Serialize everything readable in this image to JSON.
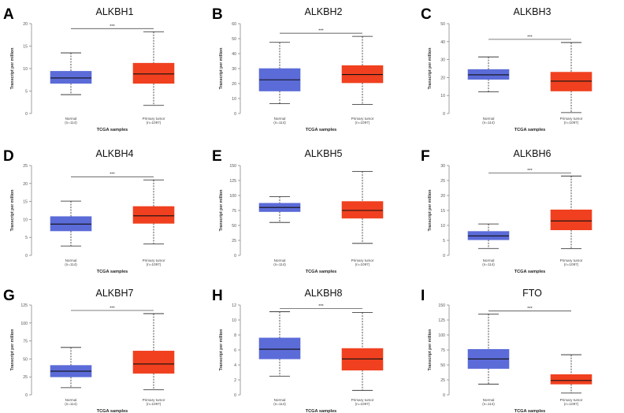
{
  "colors": {
    "normal": "#5b6bd8",
    "tumor": "#f0401f",
    "median": "#111111",
    "axis": "#888888",
    "tick": "#555555"
  },
  "chart_data": [
    {
      "type": "box",
      "letter": "A",
      "title": "ALKBH1",
      "ylabel": "Transcript per million",
      "xlabel": "TCGA samples",
      "yticks": [
        0,
        5,
        10,
        15,
        20
      ],
      "ylim": [
        0,
        20
      ],
      "significance": "***",
      "groups": [
        {
          "label": "Normal",
          "n": "(n=114)",
          "color": "normal",
          "min": 4.2,
          "q1": 6.7,
          "median": 7.9,
          "q3": 9.4,
          "max": 13.5
        },
        {
          "label": "Primary tumor",
          "n": "(n=1097)",
          "color": "tumor",
          "min": 1.8,
          "q1": 6.7,
          "median": 8.8,
          "q3": 11.2,
          "max": 18.2
        }
      ]
    },
    {
      "type": "box",
      "letter": "B",
      "title": "ALKBH2",
      "ylabel": "Transcript per million",
      "xlabel": "TCGA samples",
      "yticks": [
        0,
        10,
        20,
        30,
        40,
        50,
        60
      ],
      "ylim": [
        0,
        60
      ],
      "significance": "***",
      "groups": [
        {
          "label": "Normal",
          "n": "(n=114)",
          "color": "normal",
          "min": 6.5,
          "q1": 15,
          "median": 22.5,
          "q3": 30,
          "max": 47.5
        },
        {
          "label": "Primary tumor",
          "n": "(n=1097)",
          "color": "tumor",
          "min": 6,
          "q1": 20.5,
          "median": 26,
          "q3": 32,
          "max": 51.5
        }
      ]
    },
    {
      "type": "box",
      "letter": "C",
      "title": "ALKBH3",
      "ylabel": "Transcript per million",
      "xlabel": "TCGA samples",
      "yticks": [
        0,
        10,
        20,
        30,
        40,
        50
      ],
      "ylim": [
        0,
        50
      ],
      "significance": "***",
      "groups": [
        {
          "label": "Normal",
          "n": "(n=114)",
          "color": "normal",
          "min": 12,
          "q1": 19,
          "median": 21.5,
          "q3": 24.5,
          "max": 31.5
        },
        {
          "label": "Primary tumor",
          "n": "(n=1097)",
          "color": "tumor",
          "min": 0.5,
          "q1": 12.5,
          "median": 18,
          "q3": 23,
          "max": 39.5
        }
      ]
    },
    {
      "type": "box",
      "letter": "D",
      "title": "ALKBH4",
      "ylabel": "Transcript per million",
      "xlabel": "TCGA samples",
      "yticks": [
        0,
        5,
        10,
        15,
        20,
        25
      ],
      "ylim": [
        0,
        25
      ],
      "significance": "***",
      "groups": [
        {
          "label": "Normal",
          "n": "(n=114)",
          "color": "normal",
          "min": 2.6,
          "q1": 6.8,
          "median": 8.7,
          "q3": 10.8,
          "max": 15.1
        },
        {
          "label": "Primary tumor",
          "n": "(n=1097)",
          "color": "tumor",
          "min": 3.2,
          "q1": 8.9,
          "median": 11,
          "q3": 13.6,
          "max": 21
        }
      ]
    },
    {
      "type": "box",
      "letter": "E",
      "title": "ALKBH5",
      "ylabel": "Transcript per million",
      "xlabel": "TCGA samples",
      "yticks": [
        0,
        25,
        50,
        75,
        100,
        125,
        150
      ],
      "ylim": [
        0,
        150
      ],
      "significance": "",
      "groups": [
        {
          "label": "Normal",
          "n": "(n=114)",
          "color": "normal",
          "min": 55,
          "q1": 73,
          "median": 80,
          "q3": 87,
          "max": 98
        },
        {
          "label": "Primary tumor",
          "n": "(n=1097)",
          "color": "tumor",
          "min": 20,
          "q1": 62,
          "median": 75,
          "q3": 90,
          "max": 140
        }
      ]
    },
    {
      "type": "box",
      "letter": "F",
      "title": "ALKBH6",
      "ylabel": "Transcript per million",
      "xlabel": "TCGA samples",
      "yticks": [
        0,
        5,
        10,
        15,
        20,
        25,
        30
      ],
      "ylim": [
        0,
        30
      ],
      "significance": "***",
      "groups": [
        {
          "label": "Normal",
          "n": "(n=114)",
          "color": "normal",
          "min": 2.3,
          "q1": 5.2,
          "median": 6.5,
          "q3": 8,
          "max": 10.5
        },
        {
          "label": "Primary tumor",
          "n": "(n=1097)",
          "color": "tumor",
          "min": 2.2,
          "q1": 8.5,
          "median": 11.5,
          "q3": 15.2,
          "max": 26.5
        }
      ]
    },
    {
      "type": "box",
      "letter": "G",
      "title": "ALKBH7",
      "ylabel": "Transcript per million",
      "xlabel": "TCGA samples",
      "yticks": [
        0,
        25,
        50,
        75,
        100,
        125
      ],
      "ylim": [
        0,
        125
      ],
      "significance": "***",
      "groups": [
        {
          "label": "Normal",
          "n": "(n=114)",
          "color": "normal",
          "min": 10,
          "q1": 25,
          "median": 33,
          "q3": 41,
          "max": 66
        },
        {
          "label": "Primary tumor",
          "n": "(n=1097)",
          "color": "tumor",
          "min": 7,
          "q1": 30,
          "median": 43,
          "q3": 61,
          "max": 113
        }
      ]
    },
    {
      "type": "box",
      "letter": "H",
      "title": "ALKBH8",
      "ylabel": "Transcript per million",
      "xlabel": "TCGA samples",
      "yticks": [
        0,
        2,
        4,
        6,
        8,
        10,
        12
      ],
      "ylim": [
        0,
        12
      ],
      "significance": "***",
      "groups": [
        {
          "label": "Normal",
          "n": "(n=114)",
          "color": "normal",
          "min": 2.5,
          "q1": 4.8,
          "median": 6.1,
          "q3": 7.6,
          "max": 11.1
        },
        {
          "label": "Primary tumor",
          "n": "(n=1097)",
          "color": "tumor",
          "min": 0.6,
          "q1": 3.3,
          "median": 4.8,
          "q3": 6.2,
          "max": 11
        }
      ]
    },
    {
      "type": "box",
      "letter": "I",
      "title": "FTO",
      "ylabel": "Transcript per million",
      "xlabel": "TCGA samples",
      "yticks": [
        0,
        25,
        50,
        75,
        100,
        125,
        150
      ],
      "ylim": [
        0,
        150
      ],
      "significance": "***",
      "groups": [
        {
          "label": "Normal",
          "n": "(n=114)",
          "color": "normal",
          "min": 18,
          "q1": 44,
          "median": 60,
          "q3": 76,
          "max": 135
        },
        {
          "label": "Primary tumor",
          "n": "(n=1097)",
          "color": "tumor",
          "min": 3,
          "q1": 18,
          "median": 24,
          "q3": 34,
          "max": 67
        }
      ]
    }
  ]
}
